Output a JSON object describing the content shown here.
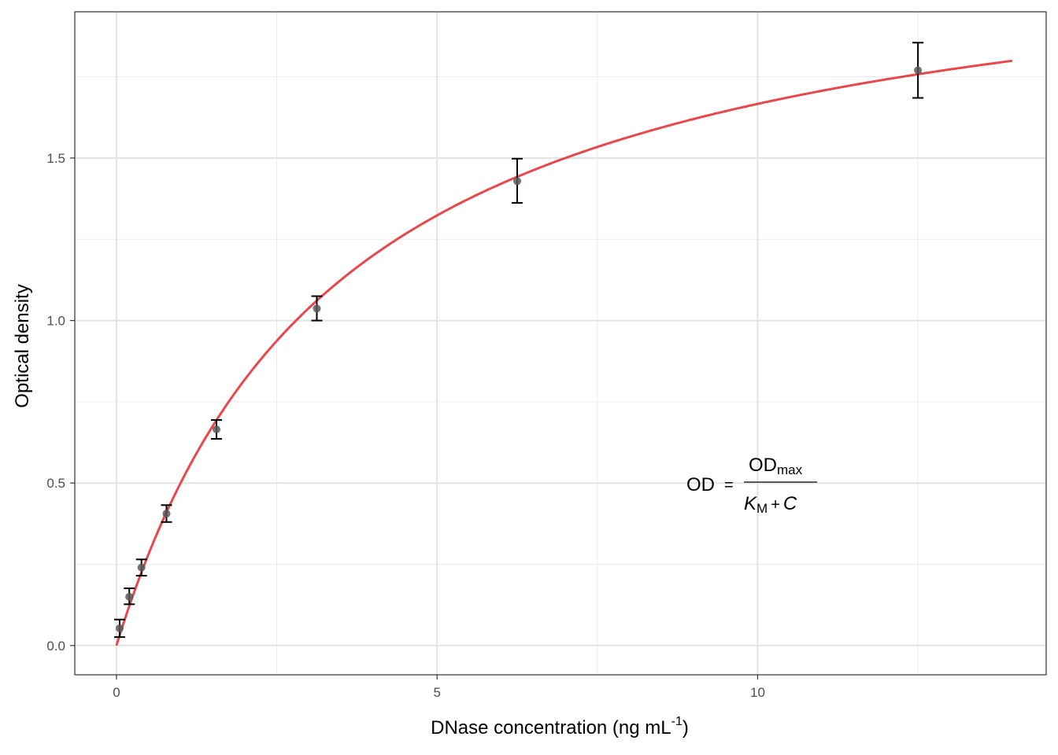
{
  "chart_data": {
    "type": "scatter",
    "xlabel": {
      "main": "DNase concentration (ng mL",
      "sup": "-1",
      "close": ")"
    },
    "ylabel": "Optical density",
    "xlim": [
      -0.65,
      14.5
    ],
    "ylim": [
      -0.09,
      1.95
    ],
    "x_ticks": [
      0,
      5,
      10
    ],
    "x_tick_labels": [
      "0",
      "5",
      "10"
    ],
    "y_ticks": [
      0.0,
      0.5,
      1.0,
      1.5
    ],
    "y_tick_labels": [
      "0.0",
      "0.5",
      "1.0",
      "1.5"
    ],
    "x_minor_ticks": [
      2.5,
      7.5,
      12.5
    ],
    "y_minor_ticks": [
      0.25,
      0.75,
      1.25,
      1.75
    ],
    "grid": true,
    "points": [
      {
        "x": 0.05,
        "y": 0.053,
        "lo": 0.026,
        "hi": 0.08
      },
      {
        "x": 0.2,
        "y": 0.15,
        "lo": 0.127,
        "hi": 0.176
      },
      {
        "x": 0.39,
        "y": 0.24,
        "lo": 0.215,
        "hi": 0.265
      },
      {
        "x": 0.78,
        "y": 0.406,
        "lo": 0.38,
        "hi": 0.432
      },
      {
        "x": 1.56,
        "y": 0.665,
        "lo": 0.636,
        "hi": 0.694
      },
      {
        "x": 3.125,
        "y": 1.037,
        "lo": 1.0,
        "hi": 1.075
      },
      {
        "x": 6.25,
        "y": 1.429,
        "lo": 1.362,
        "hi": 1.498
      },
      {
        "x": 12.5,
        "y": 1.77,
        "lo": 1.685,
        "hi": 1.855
      }
    ],
    "fit_curve": {
      "model": "OD = ODmax * C / (KM + C)",
      "ODmax": 2.25,
      "KM": 3.5,
      "x_from": 0,
      "x_to": 13.97,
      "color": "#e8474c"
    },
    "point_color": "#595959",
    "errorbar_color": "#000000",
    "annotation": {
      "lhs": "OD",
      "eq": "=",
      "num_main": "OD",
      "num_sub": "max",
      "den_main": "K",
      "den_sub": "M",
      "den_op": "+",
      "den_var": "C"
    }
  }
}
